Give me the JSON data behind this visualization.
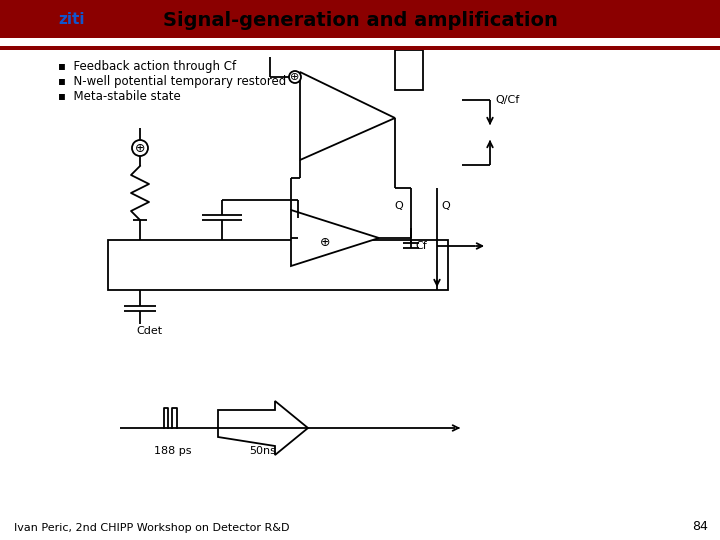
{
  "title": "Signal-generation and amplification",
  "title_fontsize": 14,
  "header_bg": "#8B0000",
  "header_stripe": "#6B0000",
  "slide_bg": "#FFFFFF",
  "footer_text": "Ivan Peric, 2nd CHIPP Workshop on Detector R&D",
  "footer_page": "84",
  "bullets": [
    "Feedback action through Cf",
    "N-well potential temporary restored",
    "Meta-stabile state"
  ],
  "lc": "#000000",
  "lw": 1.3,
  "label_QCf": "Q/Cf",
  "label_Q": "Q",
  "label_Cf": "Cf",
  "label_Cdet": "Cdet",
  "label_188ps": "188 ps",
  "label_50ns": "50ns"
}
